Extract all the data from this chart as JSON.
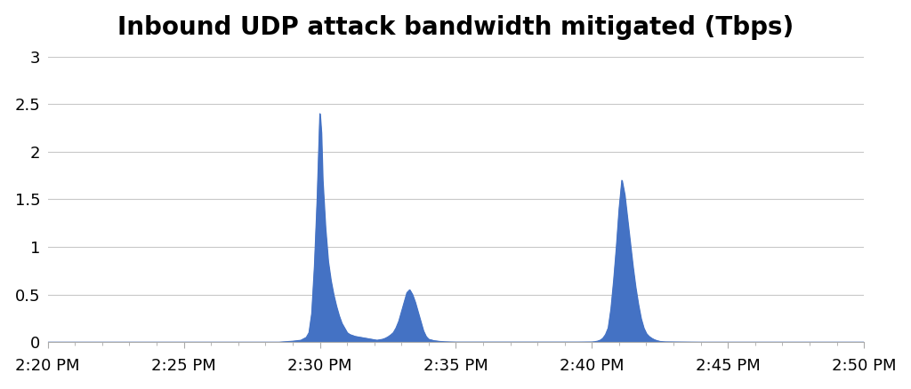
{
  "title": "Inbound UDP attack bandwidth mitigated (Tbps)",
  "title_fontsize": 20,
  "fill_color": "#4472C4",
  "background_color": "#ffffff",
  "grid_color": "#c8c8c8",
  "ylim": [
    0,
    3.0
  ],
  "yticks": [
    0,
    0.5,
    1,
    1.5,
    2,
    2.5,
    3
  ],
  "ytick_labels": [
    "0",
    "0.5",
    "1",
    "1.5",
    "2",
    "2.5",
    "3"
  ],
  "xlim": [
    0,
    30
  ],
  "xtick_labels": [
    "2:20 PM",
    "2:25 PM",
    "2:30 PM",
    "2:35 PM",
    "2:40 PM",
    "2:45 PM",
    "2:50 PM"
  ],
  "xtick_positions": [
    0,
    5,
    10,
    15,
    20,
    25,
    30
  ],
  "time_points": [
    0,
    1,
    2,
    3,
    4,
    5,
    6,
    7,
    8,
    8.5,
    9.0,
    9.3,
    9.5,
    9.6,
    9.7,
    9.8,
    9.9,
    10.0,
    10.05,
    10.1,
    10.2,
    10.3,
    10.4,
    10.5,
    10.6,
    10.7,
    10.8,
    10.9,
    11.0,
    11.1,
    11.2,
    11.3,
    11.4,
    11.5,
    11.6,
    11.7,
    11.8,
    11.9,
    12.0,
    12.1,
    12.2,
    12.3,
    12.4,
    12.5,
    12.6,
    12.7,
    12.8,
    12.9,
    13.0,
    13.1,
    13.2,
    13.3,
    13.4,
    13.5,
    13.6,
    13.7,
    13.8,
    13.9,
    14.0,
    14.2,
    14.4,
    14.6,
    14.8,
    15.0,
    15.5,
    16.0,
    16.5,
    17.0,
    17.5,
    18.0,
    18.5,
    19.0,
    19.5,
    20.0,
    20.1,
    20.2,
    20.3,
    20.4,
    20.5,
    20.6,
    20.7,
    20.8,
    20.9,
    21.0,
    21.1,
    21.2,
    21.3,
    21.4,
    21.5,
    21.6,
    21.7,
    21.8,
    21.9,
    22.0,
    22.1,
    22.2,
    22.3,
    22.4,
    22.5,
    22.6,
    22.7,
    23.0,
    23.5,
    24.0,
    24.5,
    25.0,
    26.0,
    27.0,
    28.0,
    29.0,
    30.0
  ],
  "values": [
    0,
    0,
    0,
    0,
    0,
    0,
    0,
    0,
    0,
    0,
    0.01,
    0.02,
    0.05,
    0.1,
    0.3,
    0.8,
    1.5,
    2.4,
    2.2,
    1.7,
    1.2,
    0.85,
    0.65,
    0.5,
    0.38,
    0.28,
    0.2,
    0.15,
    0.1,
    0.08,
    0.07,
    0.06,
    0.055,
    0.05,
    0.045,
    0.04,
    0.035,
    0.03,
    0.025,
    0.02,
    0.025,
    0.03,
    0.04,
    0.055,
    0.075,
    0.1,
    0.15,
    0.22,
    0.32,
    0.42,
    0.52,
    0.55,
    0.5,
    0.42,
    0.32,
    0.22,
    0.12,
    0.06,
    0.03,
    0.015,
    0.008,
    0.004,
    0.002,
    0.001,
    0.001,
    0.001,
    0.001,
    0.001,
    0.001,
    0.001,
    0.001,
    0.001,
    0.001,
    0.002,
    0.005,
    0.01,
    0.02,
    0.04,
    0.08,
    0.15,
    0.35,
    0.65,
    1.0,
    1.4,
    1.7,
    1.55,
    1.3,
    1.05,
    0.8,
    0.58,
    0.4,
    0.25,
    0.15,
    0.09,
    0.06,
    0.04,
    0.025,
    0.015,
    0.008,
    0.005,
    0.003,
    0.002,
    0.001,
    0,
    0,
    0,
    0,
    0,
    0,
    0,
    0
  ]
}
